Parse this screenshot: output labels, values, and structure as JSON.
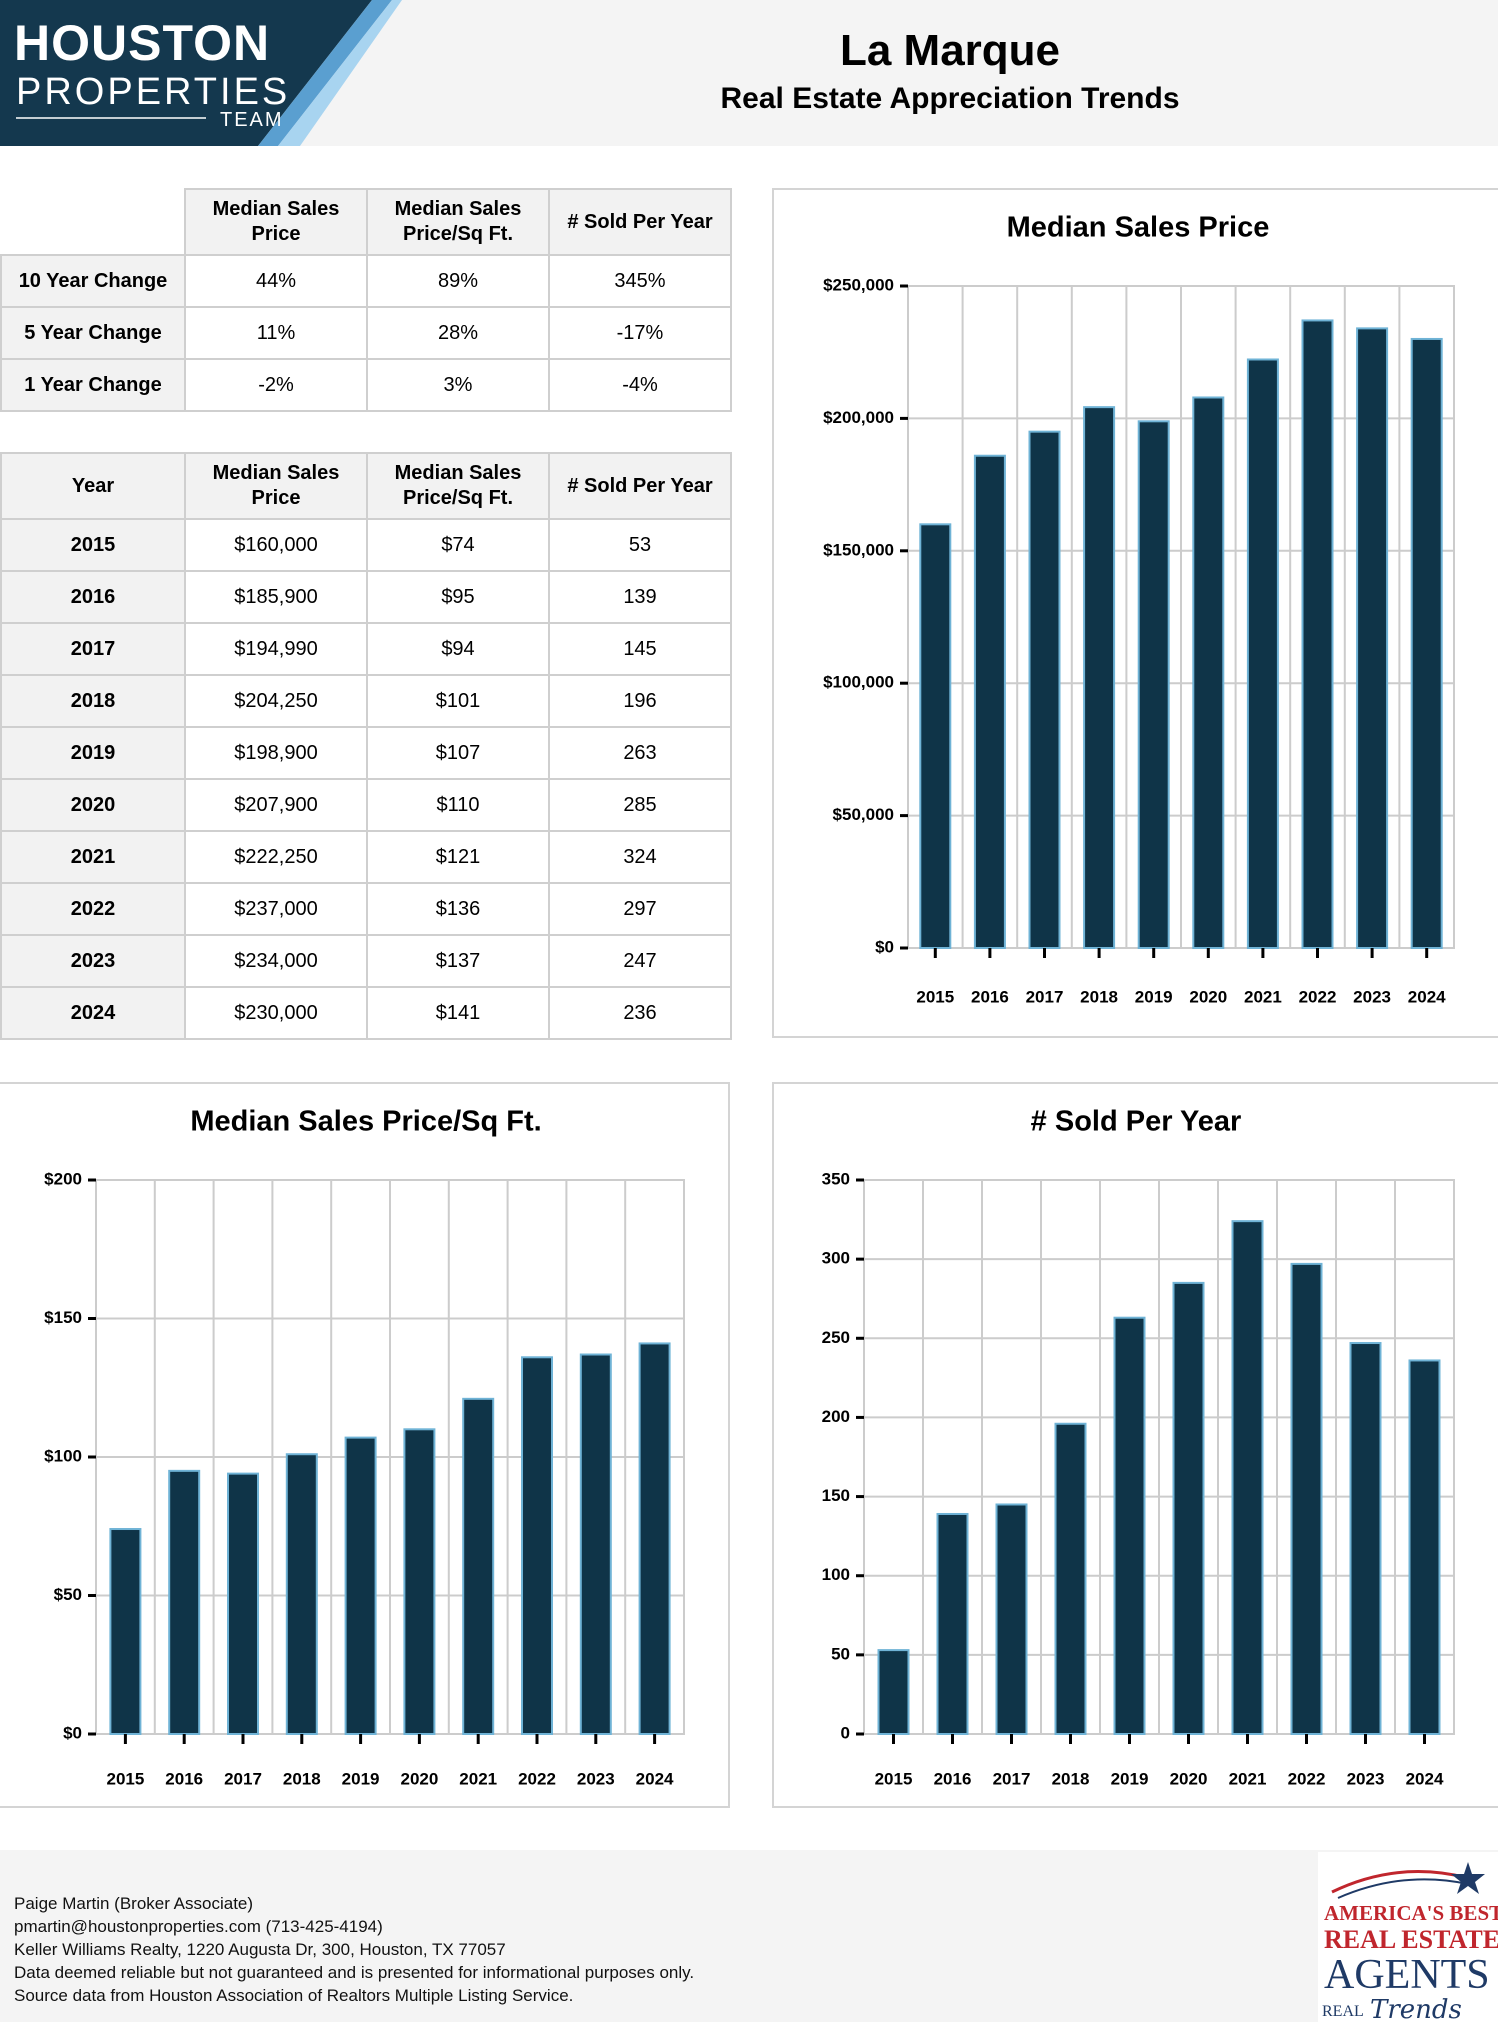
{
  "brand": {
    "line1": "HOUSTON",
    "line2": "PROPERTIES",
    "line3": "TEAM"
  },
  "header": {
    "title": "La Marque",
    "subtitle": "Real Estate Appreciation Trends"
  },
  "change_table": {
    "columns": [
      "Median Sales Price",
      "Median Sales Price/Sq Ft.",
      "# Sold Per Year"
    ],
    "rows": [
      {
        "label": "10 Year Change",
        "values": [
          "44%",
          "89%",
          "345%"
        ]
      },
      {
        "label": "5 Year Change",
        "values": [
          "11%",
          "28%",
          "-17%"
        ]
      },
      {
        "label": "1 Year Change",
        "values": [
          "-2%",
          "3%",
          "-4%"
        ]
      }
    ]
  },
  "year_table": {
    "columns": [
      "Year",
      "Median Sales Price",
      "Median Sales Price/Sq Ft.",
      "# Sold Per Year"
    ],
    "rows": [
      [
        "2015",
        "$160,000",
        "$74",
        "53"
      ],
      [
        "2016",
        "$185,900",
        "$95",
        "139"
      ],
      [
        "2017",
        "$194,990",
        "$94",
        "145"
      ],
      [
        "2018",
        "$204,250",
        "$101",
        "196"
      ],
      [
        "2019",
        "$198,900",
        "$107",
        "263"
      ],
      [
        "2020",
        "$207,900",
        "$110",
        "285"
      ],
      [
        "2021",
        "$222,250",
        "$121",
        "324"
      ],
      [
        "2022",
        "$237,000",
        "$136",
        "297"
      ],
      [
        "2023",
        "$234,000",
        "$137",
        "247"
      ],
      [
        "2024",
        "$230,000",
        "$141",
        "236"
      ]
    ]
  },
  "colors": {
    "bar_fill": "#0f3448",
    "bar_stroke": "#6fb3d6",
    "grid": "#cccccc",
    "brand_navy": "#14384e",
    "brand_light_blue": "#a8d4f0",
    "award_red": "#c0262d",
    "award_navy": "#1f3a66"
  },
  "chart_data": [
    {
      "id": "price",
      "type": "bar",
      "title": "Median Sales Price",
      "categories": [
        "2015",
        "2016",
        "2017",
        "2018",
        "2019",
        "2020",
        "2021",
        "2022",
        "2023",
        "2024"
      ],
      "values": [
        160000,
        185900,
        194990,
        204250,
        198900,
        207900,
        222250,
        237000,
        234000,
        230000
      ],
      "ylim": [
        0,
        250000
      ],
      "yticks": [
        0,
        50000,
        100000,
        150000,
        200000,
        250000
      ],
      "ytick_labels": [
        "$0",
        "$50,000",
        "$100,000",
        "$150,000",
        "$200,000",
        "$250,000"
      ],
      "grid": true
    },
    {
      "id": "sqft",
      "type": "bar",
      "title": "Median Sales Price/Sq Ft.",
      "categories": [
        "2015",
        "2016",
        "2017",
        "2018",
        "2019",
        "2020",
        "2021",
        "2022",
        "2023",
        "2024"
      ],
      "values": [
        74,
        95,
        94,
        101,
        107,
        110,
        121,
        136,
        137,
        141
      ],
      "ylim": [
        0,
        200
      ],
      "yticks": [
        0,
        50,
        100,
        150,
        200
      ],
      "ytick_labels": [
        "$0",
        "$50",
        "$100",
        "$150",
        "$200"
      ],
      "grid": true
    },
    {
      "id": "sold",
      "type": "bar",
      "title": "# Sold Per Year",
      "categories": [
        "2015",
        "2016",
        "2017",
        "2018",
        "2019",
        "2020",
        "2021",
        "2022",
        "2023",
        "2024"
      ],
      "values": [
        53,
        139,
        145,
        196,
        263,
        285,
        324,
        297,
        247,
        236
      ],
      "ylim": [
        0,
        350
      ],
      "yticks": [
        0,
        50,
        100,
        150,
        200,
        250,
        300,
        350
      ],
      "ytick_labels": [
        "0",
        "50",
        "100",
        "150",
        "200",
        "250",
        "300",
        "350"
      ],
      "grid": true
    }
  ],
  "footer": {
    "lines": [
      "Paige Martin (Broker Associate)",
      "pmartin@houstonproperties.com (713-425-4194)",
      "Keller Williams Realty, 1220 Augusta Dr, 300, Houston, TX 77057",
      "Data deemed reliable but not guaranteed and is presented for informational purposes only.",
      "Source data from Houston Association of Realtors Multiple Listing Service."
    ]
  },
  "award": {
    "line1": "AMERICA'S BEST",
    "line2": "REAL ESTATE",
    "line3": "AGENTS",
    "line4": "REAL",
    "line5": "Trends"
  }
}
